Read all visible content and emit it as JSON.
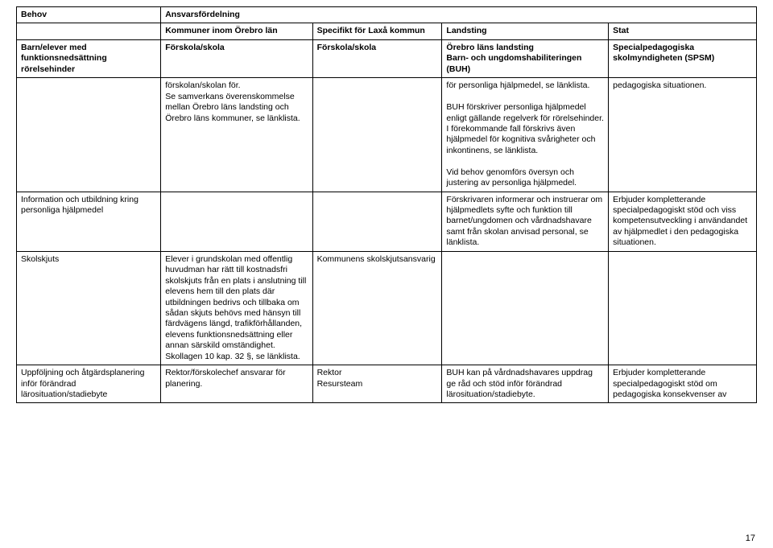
{
  "header": {
    "behov": "Behov",
    "ansvar": "Ansvarsfördelning",
    "sub": {
      "kommuner": "Kommuner inom Örebro län",
      "specifikt": "Specifikt för Laxå kommun",
      "landsting": "Landsting",
      "stat": "Stat"
    }
  },
  "row1": {
    "behov": "Barn/elever med funktionsnedsättning rörelsehinder",
    "kommuner": "Förskola/skola",
    "specifikt": "Förskola/skola",
    "landsting": "Örebro läns landsting\nBarn- och ungdomshabiliteringen (BUH)",
    "stat": "Specialpedagogiska skolmyndigheten (SPSM)"
  },
  "row2": {
    "kommuner": "förskolan/skolan för.\nSe samverkans överenskommelse mellan Örebro läns landsting och Örebro läns kommuner, se länklista.",
    "landsting": "för personliga hjälpmedel, se länklista.\n\nBUH förskriver personliga hjälpmedel enligt gällande regelverk för rörelsehinder. I förekommande fall förskrivs även hjälpmedel för kognitiva svårigheter och inkontinens, se länklista.\n\nVid behov genomförs översyn och justering av personliga hjälpmedel.",
    "stat": "pedagogiska situationen."
  },
  "row3": {
    "behov": "Information och utbildning kring personliga hjälpmedel",
    "landsting": "Förskrivaren informerar och instruerar om hjälpmedlets syfte och funktion till barnet/ungdomen och vårdnadshavare samt från skolan anvisad personal, se länklista.",
    "stat": "Erbjuder kompletterande specialpedagogiskt stöd och viss kompetensutveckling i användandet av hjälpmedlet i den pedagogiska situationen."
  },
  "row4": {
    "behov": "Skolskjuts",
    "kommuner": "Elever i grundskolan med offentlig huvudman har rätt till kostnadsfri skolskjuts från en plats i anslutning till elevens hem till den plats där utbildningen bedrivs och tillbaka om sådan skjuts behövs med hänsyn till färdvägens längd, trafikförhållanden, elevens funktionsnedsättning eller annan särskild omständighet.\nSkollagen 10 kap. 32 §, se länklista.",
    "specifikt": "Kommunens skolskjutsansvarig"
  },
  "row5": {
    "behov": "Uppföljning och åtgärdsplanering inför förändrad lärosituation/stadiebyte",
    "kommuner": "Rektor/förskolechef ansvarar för planering.",
    "specifikt": "Rektor\nResursteam",
    "landsting": "BUH kan på vårdnadshavares uppdrag ge råd och stöd inför förändrad lärosituation/stadiebyte.",
    "stat": "Erbjuder kompletterande specialpedagogiskt stöd om pedagogiska konsekvenser av"
  },
  "pageNumber": "17",
  "colors": {
    "text": "#000000",
    "border": "#000000",
    "background": "#ffffff"
  }
}
